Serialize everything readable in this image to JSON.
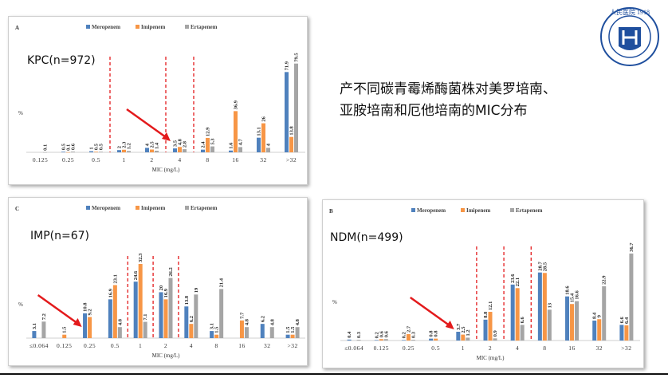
{
  "legend": {
    "labels": [
      "Meropenem",
      "Imipenem",
      "Ertapenem"
    ]
  },
  "colors": {
    "Meropenem": "#4f81bd",
    "Imipenem": "#f79646",
    "Ertapenem": "#a5a5a5",
    "cutoff": "#e31a1c",
    "arrow": "#e31a1c"
  },
  "texts": {
    "headline_line1": "产不同碳青霉烯酶菌株对美罗培南、",
    "headline_line2": "亚胺培南和厄他培南的MIC分布",
    "logo_text": "人民医院 1918"
  },
  "chart_data": [
    {
      "type": "bar",
      "panel": "A",
      "group_label": "KPC(n=972)",
      "xlabel": "MIC (mg/L)",
      "ylabel": "%",
      "categories": [
        "0.125",
        "0.25",
        "0.5",
        "1",
        "2",
        "4",
        "8",
        "16",
        "32",
        ">32"
      ],
      "series": [
        {
          "name": "Meropenem",
          "values": [
            null,
            0.5,
            1,
            2,
            4,
            3.5,
            2.4,
            1.6,
            13.1,
            71.9
          ]
        },
        {
          "name": "Imipenem",
          "values": [
            null,
            0.1,
            0.5,
            2.3,
            2.5,
            4.8,
            12.9,
            36.9,
            26,
            13.8
          ]
        },
        {
          "name": "Ertapenem",
          "values": [
            0.1,
            0.6,
            0.5,
            1.2,
            1.4,
            2.8,
            5.3,
            4.7,
            4,
            79.5
          ]
        }
      ],
      "ylim": [
        0,
        80
      ],
      "cutoffs_between": [
        [
          2,
          3
        ],
        [
          4,
          5
        ],
        [
          5,
          6
        ]
      ],
      "arrow_target_index": 5
    },
    {
      "type": "bar",
      "panel": "C",
      "group_label": "IMP(n=67)",
      "xlabel": "MIC (mg/L)",
      "ylabel": "%",
      "categories": [
        "≤0.064",
        "0.125",
        "0.25",
        "0.5",
        "1",
        "2",
        "4",
        "8",
        "16",
        "32",
        ">32"
      ],
      "series": [
        {
          "name": "Meropenem",
          "values": [
            3.1,
            null,
            10.8,
            16.9,
            24.6,
            20,
            13.8,
            3.1,
            null,
            6.2,
            1.5
          ]
        },
        {
          "name": "Imipenem",
          "values": [
            null,
            1.5,
            9.2,
            23.1,
            32.3,
            16.9,
            6.2,
            1.5,
            7.7,
            null,
            1.5
          ]
        },
        {
          "name": "Ertapenem",
          "values": [
            7.2,
            null,
            null,
            4.8,
            7.1,
            26.2,
            19,
            21.4,
            4.8,
            4.8,
            4.8
          ]
        }
      ],
      "ylim": [
        0,
        33
      ],
      "cutoffs_between": [
        [
          3,
          4
        ],
        [
          4,
          5
        ],
        [
          5,
          6
        ]
      ],
      "arrow_target_index": 2
    },
    {
      "type": "bar",
      "panel": "B",
      "group_label": "NDM(n=499)",
      "xlabel": "MIC (mg/L)",
      "ylabel": "%",
      "categories": [
        "≤0.064",
        "0.125",
        "0.25",
        "0.5",
        "1",
        "2",
        "4",
        "8",
        "16",
        "32",
        ">32"
      ],
      "series": [
        {
          "name": "Meropenem",
          "values": [
            0.4,
            0.2,
            0.2,
            0.8,
            3.7,
            8.8,
            23.6,
            28.7,
            18.6,
            8.4,
            6.6
          ]
        },
        {
          "name": "Imipenem",
          "values": [
            null,
            0.6,
            2.7,
            0.8,
            2.5,
            12.1,
            22.1,
            28.5,
            15.4,
            9,
            6.4
          ]
        },
        {
          "name": "Ertapenem",
          "values": [
            0.3,
            0.6,
            0.3,
            null,
            1.2,
            0.9,
            6.6,
            13,
            16.6,
            22.9,
            36.7
          ]
        }
      ],
      "ylim": [
        0,
        37
      ],
      "cutoffs_between": [
        [
          4,
          5
        ],
        [
          5,
          6
        ],
        [
          6,
          7
        ]
      ],
      "arrow_target_index": 4
    }
  ]
}
